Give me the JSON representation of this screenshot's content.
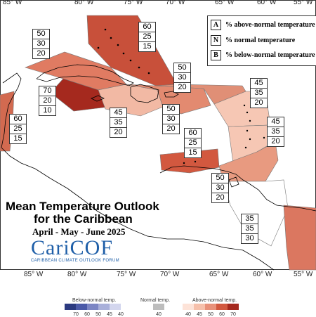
{
  "map": {
    "top_ticks": [
      "85° W",
      "80° W",
      "75° W",
      "70° W",
      "65° W",
      "60° W",
      "55° W"
    ],
    "bottom_ticks": [
      "85° W",
      "80° W",
      "75° W",
      "70° W",
      "65° W",
      "60° W",
      "55° W"
    ],
    "colors": {
      "land": "#ffffff",
      "outline": "#000000",
      "region_border": "#777777"
    }
  },
  "legend": {
    "rows": [
      {
        "key": "A",
        "text": "% above-normal temperature"
      },
      {
        "key": "N",
        "text": "% normal temperature"
      },
      {
        "key": "B",
        "text": "% below-normal temperature"
      }
    ]
  },
  "regions": [
    {
      "name": "bahamas",
      "above": "60",
      "normal": "25",
      "below": "15",
      "color": "#c8503a"
    },
    {
      "name": "cuba",
      "above": "50",
      "normal": "30",
      "below": "20",
      "color": "#e07b62"
    },
    {
      "name": "cayman",
      "above": "70",
      "normal": "20",
      "below": "10",
      "color": "#a5291e"
    },
    {
      "name": "belize",
      "above": "60",
      "normal": "25",
      "below": "15",
      "color": "#d36a50"
    },
    {
      "name": "jamaica",
      "above": "45",
      "normal": "35",
      "below": "20",
      "color": "#f2b9a4"
    },
    {
      "name": "hispaniola",
      "above": "50",
      "normal": "30",
      "below": "20",
      "color": "#e38a70"
    },
    {
      "name": "north_atlantic",
      "above": "50",
      "normal": "30",
      "below": "20",
      "color": "#e08f76"
    },
    {
      "name": "leeward",
      "above": "45",
      "normal": "35",
      "below": "20",
      "color": "#f6c7b4"
    },
    {
      "name": "windward",
      "above": "45",
      "normal": "35",
      "below": "20",
      "color": "#f6c7b4"
    },
    {
      "name": "abc_islands",
      "above": "60",
      "normal": "25",
      "below": "15",
      "color": "#d2583f"
    },
    {
      "name": "trinidad",
      "above": "50",
      "normal": "30",
      "below": "20",
      "color": "#e89a80"
    },
    {
      "name": "guianas",
      "above": "35",
      "normal": "35",
      "below": "30",
      "color": "#ffffff"
    },
    {
      "name": "suriname_east",
      "above": "",
      "normal": "",
      "below": "",
      "color": "#db7760"
    }
  ],
  "title": {
    "line1": "Mean Temperature Outlook",
    "line2": "for the Caribbean",
    "subtitle": "April - May - June 2025"
  },
  "logo": {
    "name": "CariCOF",
    "sub": "CARIBBEAN CLIMATE OUTLOOK FORUM"
  },
  "colorbar": {
    "below_title": "Below-normal temp.",
    "normal_title": "Normal temp.",
    "above_title": "Above-normal temp.",
    "below": [
      {
        "label": "70",
        "color": "#2b3a80"
      },
      {
        "label": "60",
        "color": "#4b5aa8"
      },
      {
        "label": "50",
        "color": "#7c86c4"
      },
      {
        "label": "45",
        "color": "#a9b0da"
      },
      {
        "label": "40",
        "color": "#d3d6ee"
      }
    ],
    "normal": [
      {
        "label": "40",
        "color": "#bdbdbd"
      }
    ],
    "above": [
      {
        "label": "40",
        "color": "#fde3d8"
      },
      {
        "label": "45",
        "color": "#f6c0ab"
      },
      {
        "label": "50",
        "color": "#e8917a"
      },
      {
        "label": "60",
        "color": "#d2583f"
      },
      {
        "label": "70",
        "color": "#a5291e"
      }
    ]
  }
}
